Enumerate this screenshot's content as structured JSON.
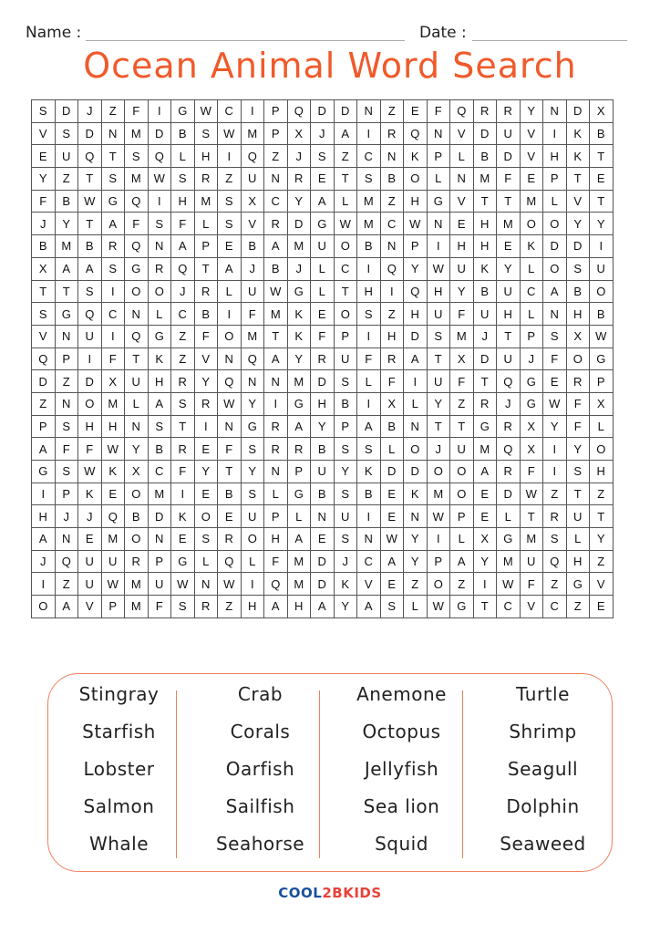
{
  "header": {
    "name_label": "Name :",
    "date_label": "Date :"
  },
  "title": "Ocean Animal Word Search",
  "colors": {
    "title": "#f05a2b",
    "border_accent": "#f08060",
    "logo_blue": "#1a4fa0",
    "logo_red": "#e8413a"
  },
  "grid": [
    "SDJZFIGWCIPQDDNZEFQRRYNDX",
    "VSDNMDBSWMPXJAIRQNVDUVIKB",
    "EUQTSQLHIQZJSZCNKPLBDVHKT",
    "YZTSMWSRZUNRETSBOLNMFEPTE",
    "FBWGQIHMSXCYALMZHGVTTMLVT",
    "JYTAFSFLSVRDGWMCWNEHMOOYY",
    "BMBRQNAPEBAMUOBNPIHHEKDDI",
    "XAASGRQTAJBJLCIQYWUKYLOSU",
    "TTSIOOJRLUWGLTHIQHYBUCABO",
    "SGQCNLCBIFMKEOSZHUFUHLNHB",
    "VNUIQGZFOMTKFPIHDSMJTPSXW",
    "QPIFTKZVNQAYRUFRATXDUJFOG",
    "DZDXUHRYQNNMDSLFIUFTQGERP",
    "ZNOMLASRWYIGHBIXLYZRJGWFX",
    "PSHHNSTINGRAYPABNTTGRXYFL",
    "AFFWYBREFSRRBSSLOJUMQXIYO",
    "GSWKXCFYTYNPUYKDDOOARFISH",
    "IPKEOMIEBSLGBSBEKMOEDWZTZ",
    "HJJQBDKOEUPLNUIENWPELTRUT",
    "ANEMONESROHAESNWYILXGMSLY",
    "JQUURPGLQLFMDJCAYPAYMUQHZ",
    "IZUWMUWNWIQMDKVEZOZIWFZGV",
    "OAVPMFSRZHAHAYASLWGTCVCZE"
  ],
  "word_columns": [
    [
      "Stingray",
      "Starfish",
      "Lobster",
      "Salmon",
      "Whale"
    ],
    [
      "Crab",
      "Corals",
      "Oarfish",
      "Sailfish",
      "Seahorse"
    ],
    [
      "Anemone",
      "Octopus",
      "Jellyfish",
      "Sea lion",
      "Squid"
    ],
    [
      "Turtle",
      "Shrimp",
      "Seagull",
      "Dolphin",
      "Seaweed"
    ]
  ],
  "logo": {
    "part1": "COOL",
    "part2": "2BKIDS"
  }
}
